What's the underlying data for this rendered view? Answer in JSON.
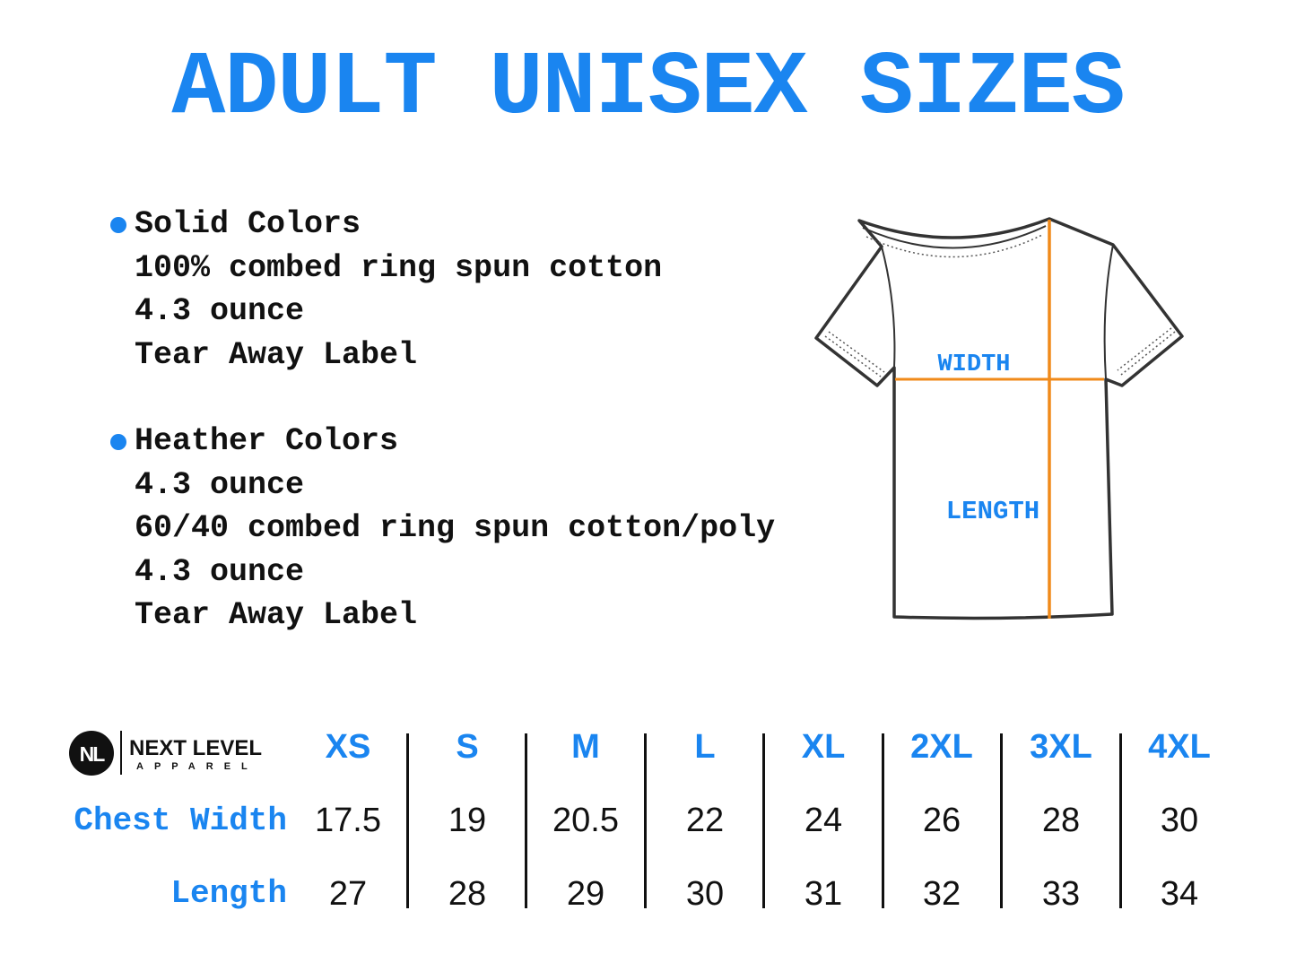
{
  "title": "ADULT UNISEX SIZES",
  "colors": {
    "accent": "#1a85f0",
    "measure_line": "#f08a1a",
    "outline": "#333333"
  },
  "groups": [
    {
      "lines": [
        "Solid Colors",
        "100% combed ring spun cotton",
        "4.3 ounce",
        "Tear Away Label"
      ]
    },
    {
      "lines": [
        "Heather Colors",
        "4.3 ounce",
        "60/40 combed ring spun cotton/poly",
        "4.3 ounce",
        "Tear Away Label"
      ]
    }
  ],
  "diagram": {
    "width_label": "WIDTH",
    "length_label": "LENGTH"
  },
  "brand": {
    "mark": "NL",
    "name": "NEXT LEVEL",
    "sub": "APPAREL"
  },
  "table": {
    "sizes": [
      "XS",
      "S",
      "M",
      "L",
      "XL",
      "2XL",
      "3XL",
      "4XL"
    ],
    "rows": [
      {
        "label": "Chest Width",
        "values": [
          "17.5",
          "19",
          "20.5",
          "22",
          "24",
          "26",
          "28",
          "30"
        ]
      },
      {
        "label": "Length",
        "values": [
          "27",
          "28",
          "29",
          "30",
          "31",
          "32",
          "33",
          "34"
        ]
      }
    ]
  }
}
